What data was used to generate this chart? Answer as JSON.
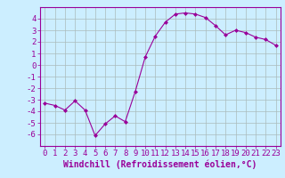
{
  "x": [
    0,
    1,
    2,
    3,
    4,
    5,
    6,
    7,
    8,
    9,
    10,
    11,
    12,
    13,
    14,
    15,
    16,
    17,
    18,
    19,
    20,
    21,
    22,
    23
  ],
  "y": [
    -3.3,
    -3.5,
    -3.9,
    -3.1,
    -3.9,
    -6.1,
    -5.1,
    -4.4,
    -4.9,
    -2.3,
    0.7,
    2.5,
    3.7,
    4.4,
    4.5,
    4.4,
    4.1,
    3.4,
    2.6,
    3.0,
    2.8,
    2.4,
    2.2,
    1.7
  ],
  "line_color": "#990099",
  "marker": "D",
  "marker_size": 2,
  "xlabel": "Windchill (Refroidissement éolien,°C)",
  "xlabel_fontsize": 7,
  "ylim": [
    -7,
    5
  ],
  "xlim": [
    -0.5,
    23.5
  ],
  "yticks": [
    -6,
    -5,
    -4,
    -3,
    -2,
    -1,
    0,
    1,
    2,
    3,
    4
  ],
  "xticks": [
    0,
    1,
    2,
    3,
    4,
    5,
    6,
    7,
    8,
    9,
    10,
    11,
    12,
    13,
    14,
    15,
    16,
    17,
    18,
    19,
    20,
    21,
    22,
    23
  ],
  "background_color": "#cceeff",
  "grid_color": "#aabbbb",
  "tick_fontsize": 6.5,
  "font_family": "monospace"
}
